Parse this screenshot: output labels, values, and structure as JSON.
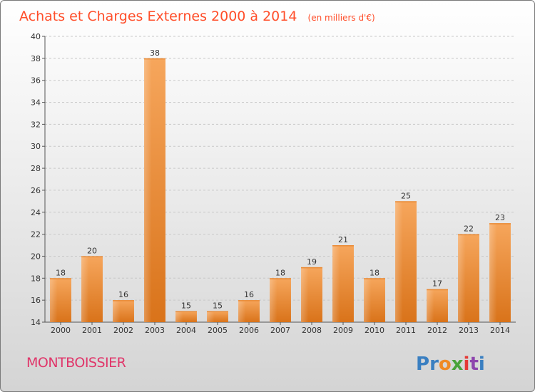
{
  "title": "Achats et Charges Externes 2000 à 2014",
  "subtitle": "(en milliers d'€)",
  "commune": "MONTBOISSIER",
  "logo": {
    "text": "Proxiti",
    "letters": [
      "P",
      "r",
      "o",
      "x",
      "i",
      "t",
      "i"
    ],
    "colors": [
      "#3a7fc1",
      "#3a7fc1",
      "#f08a24",
      "#4aa33a",
      "#e53935",
      "#8e44ad",
      "#3a7fc1"
    ]
  },
  "colors": {
    "title": "#ff4e2a",
    "commune": "#e0366a",
    "bar_top": "#f6a65c",
    "bar_bottom": "#d9731a"
  },
  "chart_data": {
    "type": "bar",
    "title": "Achats et Charges Externes 2000 à 2014",
    "subtitle": "(en milliers d'€)",
    "categories": [
      "2000",
      "2001",
      "2002",
      "2003",
      "2004",
      "2005",
      "2006",
      "2007",
      "2008",
      "2009",
      "2010",
      "2011",
      "2012",
      "2013",
      "2014"
    ],
    "values": [
      18,
      20,
      16,
      38,
      15,
      15,
      16,
      18,
      19,
      21,
      18,
      25,
      17,
      22,
      23
    ],
    "ylim": [
      14,
      40
    ],
    "yticks": [
      14,
      16,
      18,
      20,
      22,
      24,
      26,
      28,
      30,
      32,
      34,
      36,
      38,
      40
    ],
    "grid": "horizontal dashed",
    "legend": "none"
  }
}
